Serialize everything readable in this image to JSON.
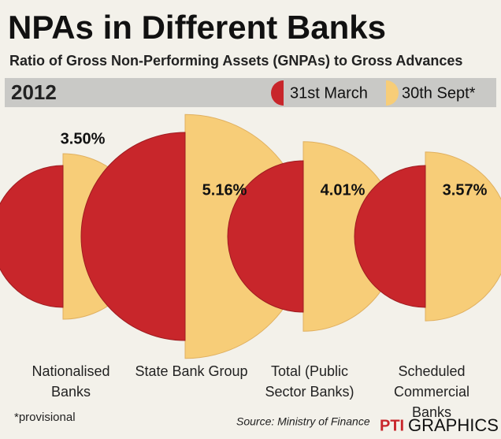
{
  "chart_data": {
    "type": "half-circle",
    "title": "NPAs in Different Banks",
    "subtitle": "Ratio of Gross Non-Performing Assets (GNPAs) to Gross Advances",
    "year": "2012",
    "categories": [
      "Nationalised Banks",
      "State Bank Group",
      "Total (Public Sector Banks)",
      "Scheduled Commercial Banks"
    ],
    "series": [
      {
        "name": "31st March",
        "color": "#c8262b",
        "values": [
          3.0,
          4.4,
          3.2,
          3.0
        ]
      },
      {
        "name": "30th Sept*",
        "color": "#f7cd78",
        "values": [
          3.5,
          5.16,
          4.01,
          3.57
        ],
        "value_labels": [
          "3.50%",
          "5.16%",
          "4.01%",
          "3.57%"
        ]
      }
    ],
    "footnote": "*provisional",
    "source": "Source: Ministry of Finance",
    "brand": [
      "PTI",
      "GRAPHICS"
    ]
  }
}
